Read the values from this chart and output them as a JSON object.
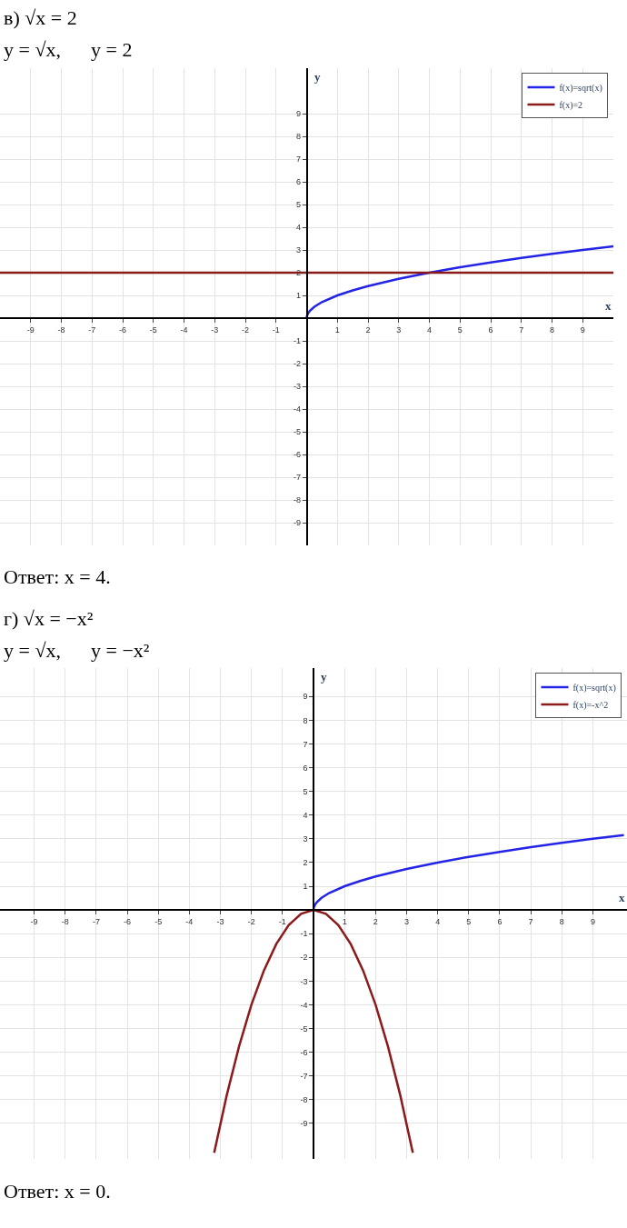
{
  "chart_data": [
    {
      "type": "line",
      "title": "в) √x = 2",
      "subtitle": "y = √x,      y = 2",
      "annotations": [
        "Ответ: x = 4."
      ],
      "xlabel": "x",
      "ylabel": "y",
      "xlim": [
        -10,
        10
      ],
      "ylim": [
        -10,
        11
      ],
      "xticks": [
        -9,
        -8,
        -7,
        -6,
        -5,
        -4,
        -3,
        -2,
        -1,
        1,
        2,
        3,
        4,
        5,
        6,
        7,
        8,
        9
      ],
      "yticks": [
        -9,
        -8,
        -7,
        -6,
        -5,
        -4,
        -3,
        -2,
        -1,
        1,
        2,
        3,
        4,
        5,
        6,
        7,
        8,
        9
      ],
      "grid": true,
      "legend": "top right",
      "series": [
        {
          "name": "f(x)=sqrt(x)",
          "color": "#2424e6",
          "x": [
            0,
            0.01,
            0.05,
            0.1,
            0.25,
            0.5,
            1,
            1.5,
            2,
            3,
            4,
            5,
            6,
            7,
            8,
            9,
            10
          ],
          "values": [
            0,
            0.1,
            0.22,
            0.32,
            0.5,
            0.71,
            1,
            1.22,
            1.41,
            1.73,
            2,
            2.24,
            2.45,
            2.65,
            2.83,
            3,
            3.16
          ]
        },
        {
          "name": "f(x)=2",
          "color": "#8b1a1a",
          "x": [
            -10,
            10
          ],
          "values": [
            2,
            2
          ]
        }
      ]
    },
    {
      "type": "line",
      "title": "г) √x = −x²",
      "subtitle": "y = √x,      y = −x²",
      "annotations": [
        "Ответ: x = 0."
      ],
      "xlabel": "x",
      "ylabel": "y",
      "xlim": [
        -10.1,
        10.1
      ],
      "ylim": [
        -10.5,
        10.2
      ],
      "xticks": [
        -9,
        -8,
        -7,
        -6,
        -5,
        -4,
        -3,
        -2,
        -1,
        1,
        2,
        3,
        4,
        5,
        6,
        7,
        8,
        9
      ],
      "yticks": [
        -9,
        -8,
        -7,
        -6,
        -5,
        -4,
        -3,
        -2,
        -1,
        1,
        2,
        3,
        4,
        5,
        6,
        7,
        8,
        9
      ],
      "grid": true,
      "legend": "top right",
      "series": [
        {
          "name": "f(x)=sqrt(x)",
          "color": "#2424e6",
          "x": [
            0,
            0.01,
            0.05,
            0.1,
            0.25,
            0.5,
            1,
            1.5,
            2,
            3,
            4,
            5,
            6,
            7,
            8,
            9,
            10
          ],
          "values": [
            0,
            0.1,
            0.22,
            0.32,
            0.5,
            0.71,
            1,
            1.22,
            1.41,
            1.73,
            2,
            2.24,
            2.45,
            2.65,
            2.83,
            3,
            3.16
          ]
        },
        {
          "name": "f(x)=-x^2",
          "color": "#8b1a1a",
          "x": [
            -3.2,
            -2.8,
            -2.4,
            -2,
            -1.6,
            -1.2,
            -0.8,
            -0.4,
            0,
            0.4,
            0.8,
            1.2,
            1.6,
            2,
            2.4,
            2.8,
            3.2
          ],
          "values": [
            -10.24,
            -7.84,
            -5.76,
            -4,
            -2.56,
            -1.44,
            -0.64,
            -0.16,
            0,
            -0.16,
            -0.64,
            -1.44,
            -2.56,
            -4,
            -5.76,
            -7.84,
            -10.24
          ]
        }
      ]
    }
  ]
}
